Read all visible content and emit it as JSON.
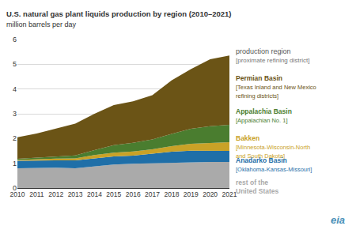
{
  "chart_data": {
    "type": "area",
    "stacked": true,
    "grid": true,
    "title": "U.S. natural gas plant liquids production by region (2010–2021)",
    "subtitle": "million barrels per day",
    "legend_title": "production region",
    "legend_subtitle": "[proximate refining district]",
    "source_logo": "eia",
    "x": [
      2010,
      2011,
      2012,
      2013,
      2014,
      2015,
      2016,
      2017,
      2018,
      2019,
      2020,
      2021
    ],
    "xlim": [
      2010,
      2021
    ],
    "xticks": [
      2010,
      2011,
      2012,
      2013,
      2014,
      2015,
      2016,
      2017,
      2018,
      2019,
      2020,
      2021
    ],
    "ylim": [
      0,
      6
    ],
    "yticks": [
      0,
      1,
      2,
      3,
      4,
      5,
      6
    ],
    "series": [
      {
        "name": "rest of the\nUnited States",
        "color": "#aaaaaa",
        "values": [
          0.8,
          0.82,
          0.82,
          0.8,
          0.88,
          0.95,
          0.98,
          1.0,
          1.02,
          1.03,
          1.05,
          1.05
        ]
      },
      {
        "name": "Anadarko Basin",
        "district": "[Oklahoma-Kansas-Missouri]",
        "color": "#1f6fa8",
        "values": [
          0.3,
          0.3,
          0.3,
          0.32,
          0.33,
          0.33,
          0.33,
          0.38,
          0.45,
          0.48,
          0.45,
          0.45
        ]
      },
      {
        "name": "Bakken",
        "district": "[Minnesota-Wisconsin-North\nand South Dakota]",
        "color": "#c9a227",
        "values": [
          0.03,
          0.05,
          0.07,
          0.08,
          0.12,
          0.15,
          0.17,
          0.18,
          0.22,
          0.28,
          0.32,
          0.35
        ]
      },
      {
        "name": "Appalachia Basin",
        "district": "[Appalachian No. 1]",
        "color": "#4a7d2f",
        "values": [
          0.05,
          0.06,
          0.08,
          0.12,
          0.2,
          0.3,
          0.35,
          0.4,
          0.5,
          0.6,
          0.68,
          0.7
        ]
      },
      {
        "name": "Permian Basin",
        "district": "[Texas Inland and New Mexico\nrefining districts]",
        "color": "#6b5416",
        "values": [
          0.87,
          0.97,
          1.13,
          1.28,
          1.47,
          1.62,
          1.67,
          1.79,
          2.16,
          2.41,
          2.7,
          2.8
        ]
      }
    ]
  }
}
